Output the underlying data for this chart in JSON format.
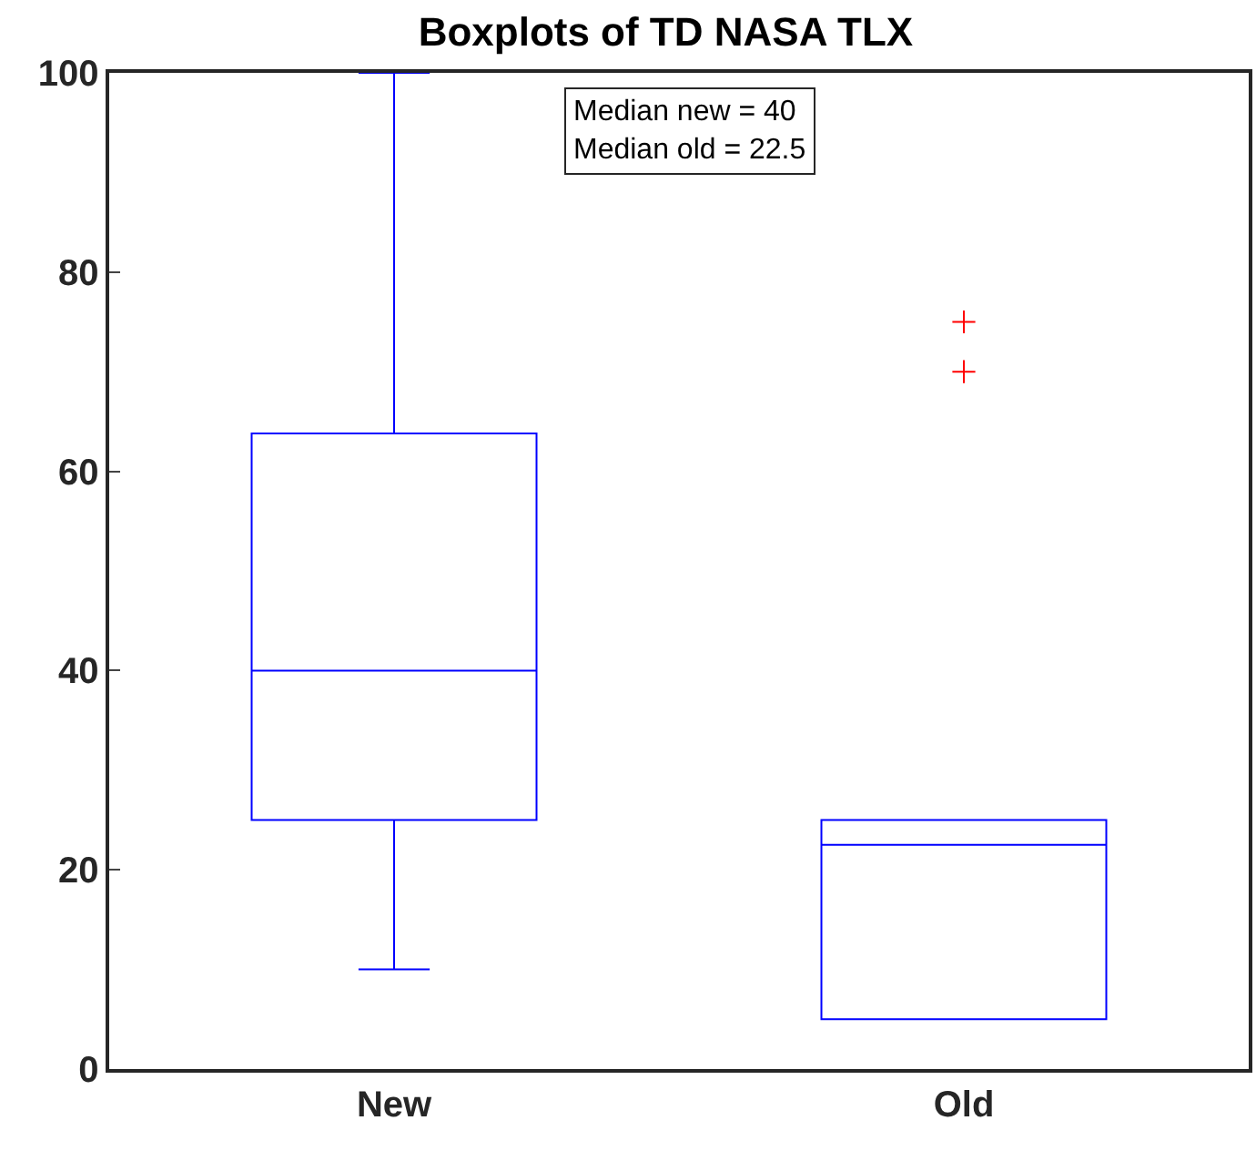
{
  "chart_data": {
    "type": "box",
    "title": "Boxplots of TD NASA TLX",
    "categories": [
      "New",
      "Old"
    ],
    "series": [
      {
        "color": "#0000ff",
        "boxes": [
          {
            "low": 10,
            "q1": 25,
            "median": 40,
            "q3": 63.8,
            "high": 100
          },
          {
            "low": 5,
            "q1": 5,
            "median": 22.5,
            "q3": 25,
            "high": 25
          }
        ]
      },
      {
        "type": "scatter",
        "color": "#ff0000",
        "x": [
          "Old",
          "Old"
        ],
        "values": [
          75,
          70
        ]
      }
    ],
    "ylim": [
      0,
      100
    ],
    "yticks": [
      0,
      20,
      40,
      60,
      80,
      100
    ],
    "marker": "cross",
    "annotations": [
      "Median new = 40",
      "Median old = 22.5"
    ]
  }
}
